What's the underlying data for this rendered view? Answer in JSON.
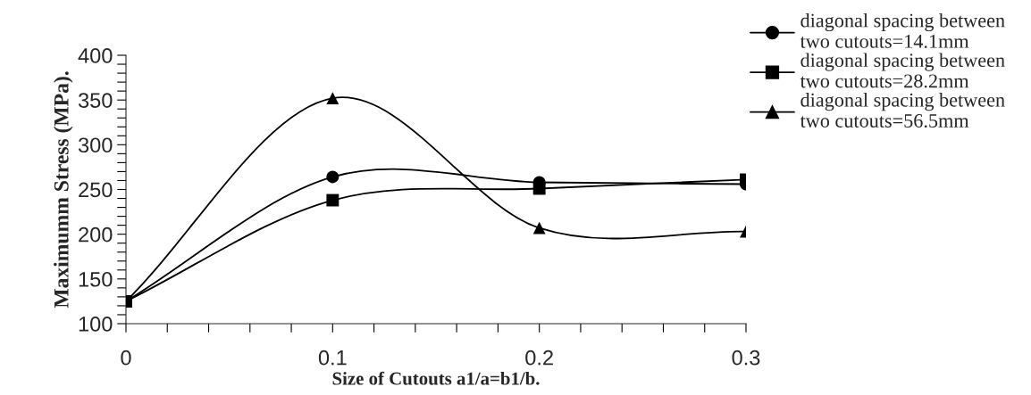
{
  "chart_data": {
    "type": "line",
    "xlabel": "Size of Cutouts a1/a=b1/b.",
    "ylabel": "Maximumm Stress (MPa).",
    "x": [
      0,
      0.1,
      0.2,
      0.3
    ],
    "series": [
      {
        "name": "diagonal spacing between\ntwo cutouts=14.1mm",
        "color": "#000000",
        "marker": "circle",
        "values": [
          125,
          264,
          258,
          256
        ]
      },
      {
        "name": "diagonal spacing between\ntwo cutouts=28.2mm",
        "color": "#000000",
        "marker": "square",
        "values": [
          125,
          238,
          251,
          261
        ]
      },
      {
        "name": "diagonal spacing between\ntwo cutouts=56.5mm",
        "color": "#000000",
        "marker": "triangle",
        "values": [
          125,
          352,
          207,
          203
        ]
      }
    ],
    "xlim": [
      0,
      0.3
    ],
    "xticks": [
      0,
      {
        "value": 0.02,
        "label": null
      },
      {
        "value": 0.04,
        "label": null
      },
      {
        "value": 0.06,
        "label": null
      },
      {
        "value": 0.08,
        "label": null
      },
      0.1,
      {
        "value": 0.12,
        "label": null
      },
      {
        "value": 0.14,
        "label": null
      },
      {
        "value": 0.16,
        "label": null
      },
      {
        "value": 0.18,
        "label": null
      },
      0.2,
      {
        "value": 0.22,
        "label": null
      },
      {
        "value": 0.24,
        "label": null
      },
      {
        "value": 0.26,
        "label": null
      },
      {
        "value": 0.28,
        "label": null
      },
      0.3
    ],
    "ylim": [
      100,
      400
    ],
    "yticks": [
      100,
      {
        "value": 110,
        "label": null
      },
      {
        "value": 120,
        "label": null
      },
      {
        "value": 130,
        "label": null
      },
      {
        "value": 140,
        "label": null
      },
      150,
      {
        "value": 160,
        "label": null
      },
      {
        "value": 170,
        "label": null
      },
      {
        "value": 180,
        "label": null
      },
      {
        "value": 190,
        "label": null
      },
      200,
      {
        "value": 210,
        "label": null
      },
      {
        "value": 220,
        "label": null
      },
      {
        "value": 230,
        "label": null
      },
      {
        "value": 240,
        "label": null
      },
      250,
      {
        "value": 260,
        "label": null
      },
      {
        "value": 270,
        "label": null
      },
      {
        "value": 280,
        "label": null
      },
      {
        "value": 290,
        "label": null
      },
      300,
      {
        "value": 310,
        "label": null
      },
      {
        "value": 320,
        "label": null
      },
      {
        "value": 330,
        "label": null
      },
      {
        "value": 340,
        "label": null
      },
      350,
      {
        "value": 360,
        "label": null
      },
      {
        "value": 370,
        "label": null
      },
      {
        "value": 380,
        "label": null
      },
      {
        "value": 390,
        "label": null
      },
      400
    ],
    "grid": false,
    "legend": "top right",
    "line_style": "solid"
  }
}
